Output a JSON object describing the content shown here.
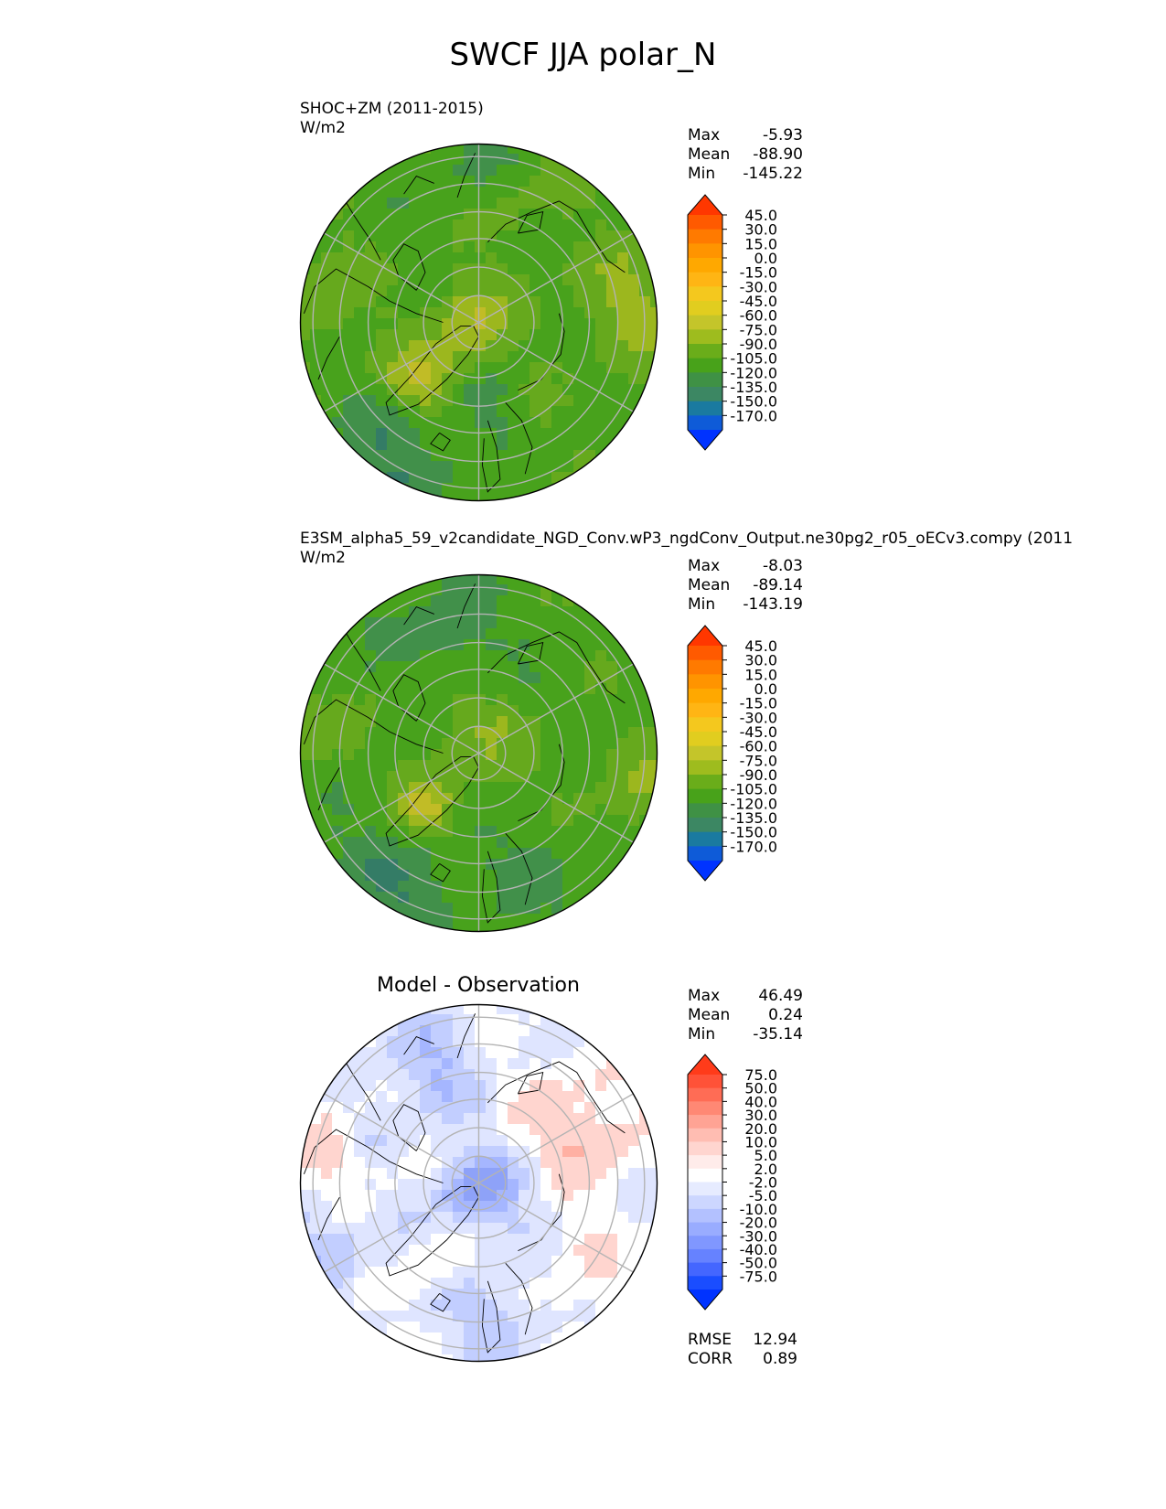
{
  "figure_title": "SWCF JJA polar_N",
  "chart_data": [
    {
      "type": "polar-contour-map",
      "projection": "north-polar-stereographic",
      "title": "SHOC+ZM (2011-2015)",
      "units": "W/m2",
      "stats": {
        "max": "-5.93",
        "mean": "-88.90",
        "min": "-145.22"
      },
      "stat_labels": {
        "max": "Max",
        "mean": "Mean",
        "min": "Min"
      },
      "levels": [
        "45.0",
        "30.0",
        "15.0",
        "0.0",
        "-15.0",
        "-30.0",
        "-45.0",
        "-60.0",
        "-75.0",
        "-90.0",
        "-105.0",
        "-120.0",
        "-135.0",
        "-150.0",
        "-170.0"
      ],
      "colors": [
        "#ff3700",
        "#ff5a00",
        "#ff7a00",
        "#ff9400",
        "#ffa800",
        "#ffb514",
        "#f4c81e",
        "#e1cd1f",
        "#c4c52a",
        "#9ebc1e",
        "#6aad1a",
        "#48a21a",
        "#3f9145",
        "#3c8763",
        "#1a7aa0",
        "#0e5bd8",
        "#0033ff"
      ],
      "field_colors": [
        "#fdb214",
        "#e2c81f",
        "#c1bc26",
        "#9cb71e",
        "#66a91d",
        "#48a21c",
        "#41904a",
        "#347c66",
        "#1b5fd0"
      ]
    },
    {
      "type": "polar-contour-map",
      "projection": "north-polar-stereographic",
      "title": "E3SM_alpha5_59_v2candidate_NGD_Conv.wP3_ngdConv_Output.ne30pg2_r05_oECv3.compy (2011",
      "units": "W/m2",
      "stats": {
        "max": "-8.03",
        "mean": "-89.14",
        "min": "-143.19"
      },
      "stat_labels": {
        "max": "Max",
        "mean": "Mean",
        "min": "Min"
      },
      "levels": [
        "45.0",
        "30.0",
        "15.0",
        "0.0",
        "-15.0",
        "-30.0",
        "-45.0",
        "-60.0",
        "-75.0",
        "-90.0",
        "-105.0",
        "-120.0",
        "-135.0",
        "-150.0",
        "-170.0"
      ],
      "colors": [
        "#ff3700",
        "#ff5a00",
        "#ff7a00",
        "#ff9400",
        "#ffa800",
        "#ffb514",
        "#f4c81e",
        "#e1cd1f",
        "#c4c52a",
        "#9ebc1e",
        "#6aad1a",
        "#48a21a",
        "#3f9145",
        "#3c8763",
        "#1a7aa0",
        "#0e5bd8",
        "#0033ff"
      ],
      "field_colors": [
        "#fdb214",
        "#e2c81f",
        "#c1bc26",
        "#9cb71e",
        "#66a91d",
        "#48a21c",
        "#41904a",
        "#347c66",
        "#1b5fd0"
      ]
    },
    {
      "type": "polar-contour-map",
      "projection": "north-polar-stereographic",
      "title": "Model - Observation",
      "units": "",
      "stats": {
        "max": "46.49",
        "mean": "0.24",
        "min": "-35.14"
      },
      "stat_labels": {
        "max": "Max",
        "mean": "Mean",
        "min": "Min"
      },
      "levels": [
        "75.0",
        "50.0",
        "40.0",
        "30.0",
        "20.0",
        "10.0",
        "5.0",
        "2.0",
        "-2.0",
        "-5.0",
        "-10.0",
        "-20.0",
        "-30.0",
        "-40.0",
        "-50.0",
        "-75.0"
      ],
      "colors": [
        "#ff3b1a",
        "#ff5238",
        "#ff6c55",
        "#ff8874",
        "#ffa394",
        "#ffbdb2",
        "#ffd5cf",
        "#ffecea",
        "#ffffff",
        "#e6ebff",
        "#ccd6ff",
        "#b3c1ff",
        "#99acff",
        "#8097ff",
        "#6682ff",
        "#4466ff",
        "#1a4dff",
        "#0033ff"
      ],
      "field_colors": [
        "#ff5a45",
        "#ff8a78",
        "#ffb0a3",
        "#ffd5cf",
        "#ffffff",
        "#dfe5ff",
        "#c2ceff",
        "#a5b6ff",
        "#8ea2f8"
      ],
      "metrics": {
        "rmse": "12.94",
        "corr": "0.89"
      },
      "metric_labels": {
        "rmse": "RMSE",
        "corr": "CORR"
      }
    }
  ]
}
